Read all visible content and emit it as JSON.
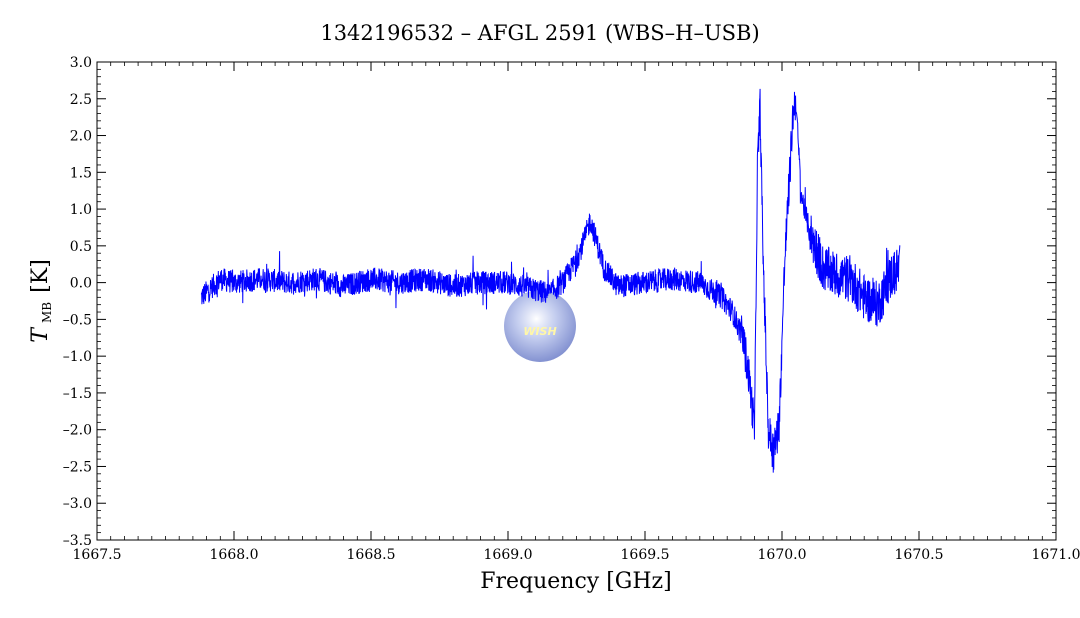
{
  "chart_data": {
    "type": "line",
    "title": "1342196532 – AFGL 2591 (WBS–H–USB)",
    "xlabel": "Frequency [GHz]",
    "ylabel": {
      "symbol": "T",
      "subscript": "MB",
      "unit": "[K]"
    },
    "xlim": [
      1667.5,
      1671.0
    ],
    "ylim": [
      -3.5,
      3.0
    ],
    "xticks": [
      1667.5,
      1668.0,
      1668.5,
      1669.0,
      1669.5,
      1670.0,
      1670.5,
      1671.0
    ],
    "xtick_labels": [
      "1667.5",
      "1668.0",
      "1668.5",
      "1669.0",
      "1669.5",
      "1670.0",
      "1670.5",
      "1671.0"
    ],
    "yticks": [
      3.0,
      2.5,
      2.0,
      1.5,
      1.0,
      0.5,
      0.0,
      -0.5,
      -1.0,
      -1.5,
      -2.0,
      -2.5,
      -3.0,
      -3.5
    ],
    "ytick_labels": [
      "3.0",
      "2.5",
      "2.0",
      "1.5",
      "1.0",
      "0.5",
      "0.0",
      "–0.5",
      "–1.0",
      "–1.5",
      "–2.0",
      "–2.5",
      "–3.0",
      "–3.5"
    ],
    "grid": false,
    "series": [
      {
        "color": "#0000ff",
        "x": [
          1667.88,
          1667.95,
          1668.0,
          1668.1,
          1668.2,
          1668.3,
          1668.4,
          1668.5,
          1668.6,
          1668.7,
          1668.8,
          1668.9,
          1669.0,
          1669.1,
          1669.15,
          1669.2,
          1669.25,
          1669.28,
          1669.3,
          1669.32,
          1669.35,
          1669.4,
          1669.5,
          1669.6,
          1669.7,
          1669.78,
          1669.82,
          1669.86,
          1669.88,
          1669.9,
          1669.91,
          1669.92,
          1669.93,
          1669.95,
          1669.97,
          1669.99,
          1670.01,
          1670.03,
          1670.04,
          1670.05,
          1670.07,
          1670.1,
          1670.15,
          1670.2,
          1670.25,
          1670.3,
          1670.35,
          1670.4,
          1670.43
        ],
        "y": [
          -0.2,
          0.05,
          0.0,
          0.05,
          0.0,
          0.05,
          -0.05,
          0.05,
          0.0,
          0.05,
          -0.05,
          0.0,
          0.0,
          -0.1,
          -0.15,
          0.0,
          0.3,
          0.6,
          0.85,
          0.6,
          0.2,
          -0.05,
          0.0,
          0.05,
          0.0,
          -0.2,
          -0.4,
          -0.8,
          -1.3,
          -2.0,
          1.5,
          2.4,
          0.5,
          -2.0,
          -2.3,
          -1.9,
          0.3,
          1.6,
          2.3,
          2.5,
          1.2,
          0.7,
          0.2,
          0.1,
          0.05,
          -0.2,
          -0.3,
          0.1,
          0.2
        ]
      }
    ],
    "logo": "WISH"
  }
}
